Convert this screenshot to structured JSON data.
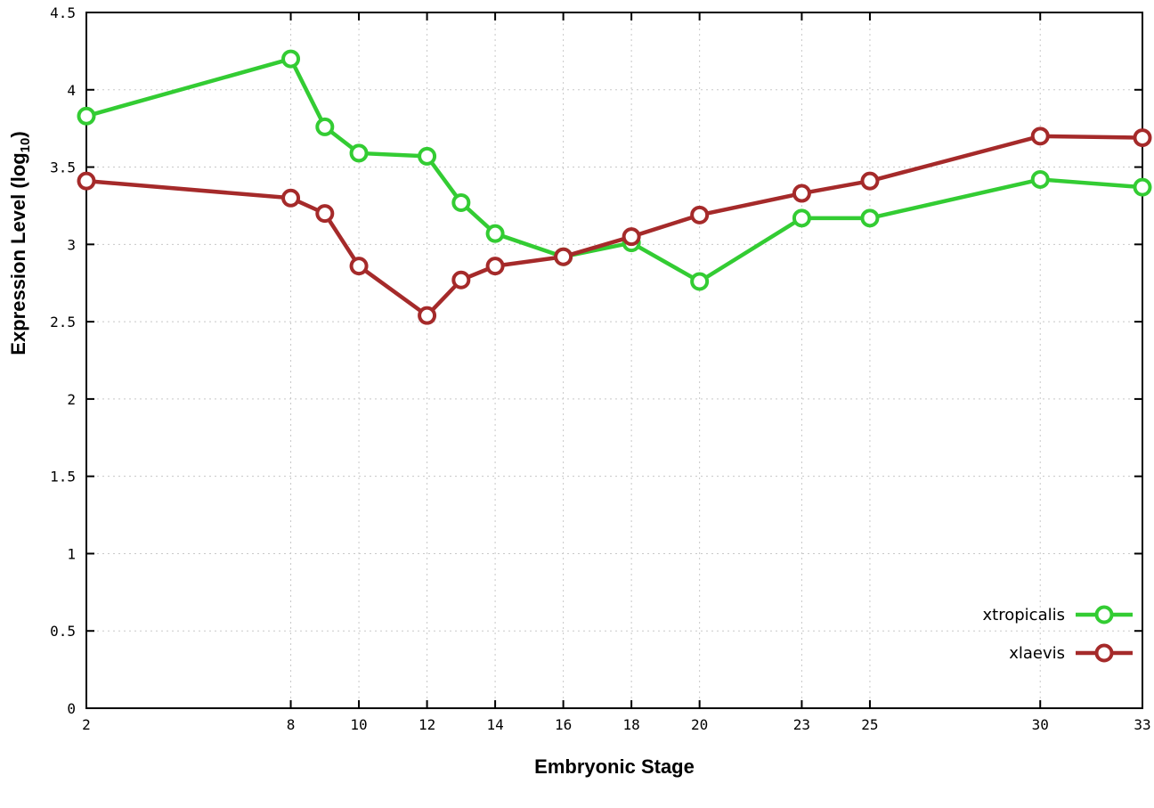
{
  "chart_data": {
    "type": "line",
    "title": "",
    "xlabel": "Embryonic Stage",
    "ylabel_prefix": "Expression Level (log",
    "ylabel_sub": "10",
    "ylabel_suffix": ")",
    "x_ticks": [
      2,
      8,
      10,
      12,
      14,
      16,
      18,
      20,
      23,
      25,
      30,
      33
    ],
    "y_ticks": [
      0,
      0.5,
      1,
      1.5,
      2,
      2.5,
      3,
      3.5,
      4,
      4.5
    ],
    "xlim": [
      2,
      33
    ],
    "ylim": [
      0,
      4.5
    ],
    "grid": true,
    "legend_position": "bottom-right",
    "x": [
      2,
      8,
      9,
      10,
      12,
      13,
      14,
      16,
      18,
      20,
      23,
      25,
      30,
      33
    ],
    "series": [
      {
        "name": "xtropicalis",
        "color": "#33cc33",
        "values": [
          3.83,
          4.2,
          3.76,
          3.59,
          3.57,
          3.27,
          3.07,
          2.92,
          3.01,
          2.76,
          3.17,
          3.17,
          3.42,
          3.37
        ]
      },
      {
        "name": "xlaevis",
        "color": "#a52a2a",
        "values": [
          3.41,
          3.3,
          3.2,
          2.86,
          2.54,
          2.77,
          2.86,
          2.92,
          3.05,
          3.19,
          3.33,
          3.41,
          3.7,
          3.69
        ]
      }
    ],
    "colors": {
      "grid": "#c8c8c8",
      "axis": "#000000",
      "background": "#ffffff",
      "marker_fill": "#ffffff"
    }
  }
}
